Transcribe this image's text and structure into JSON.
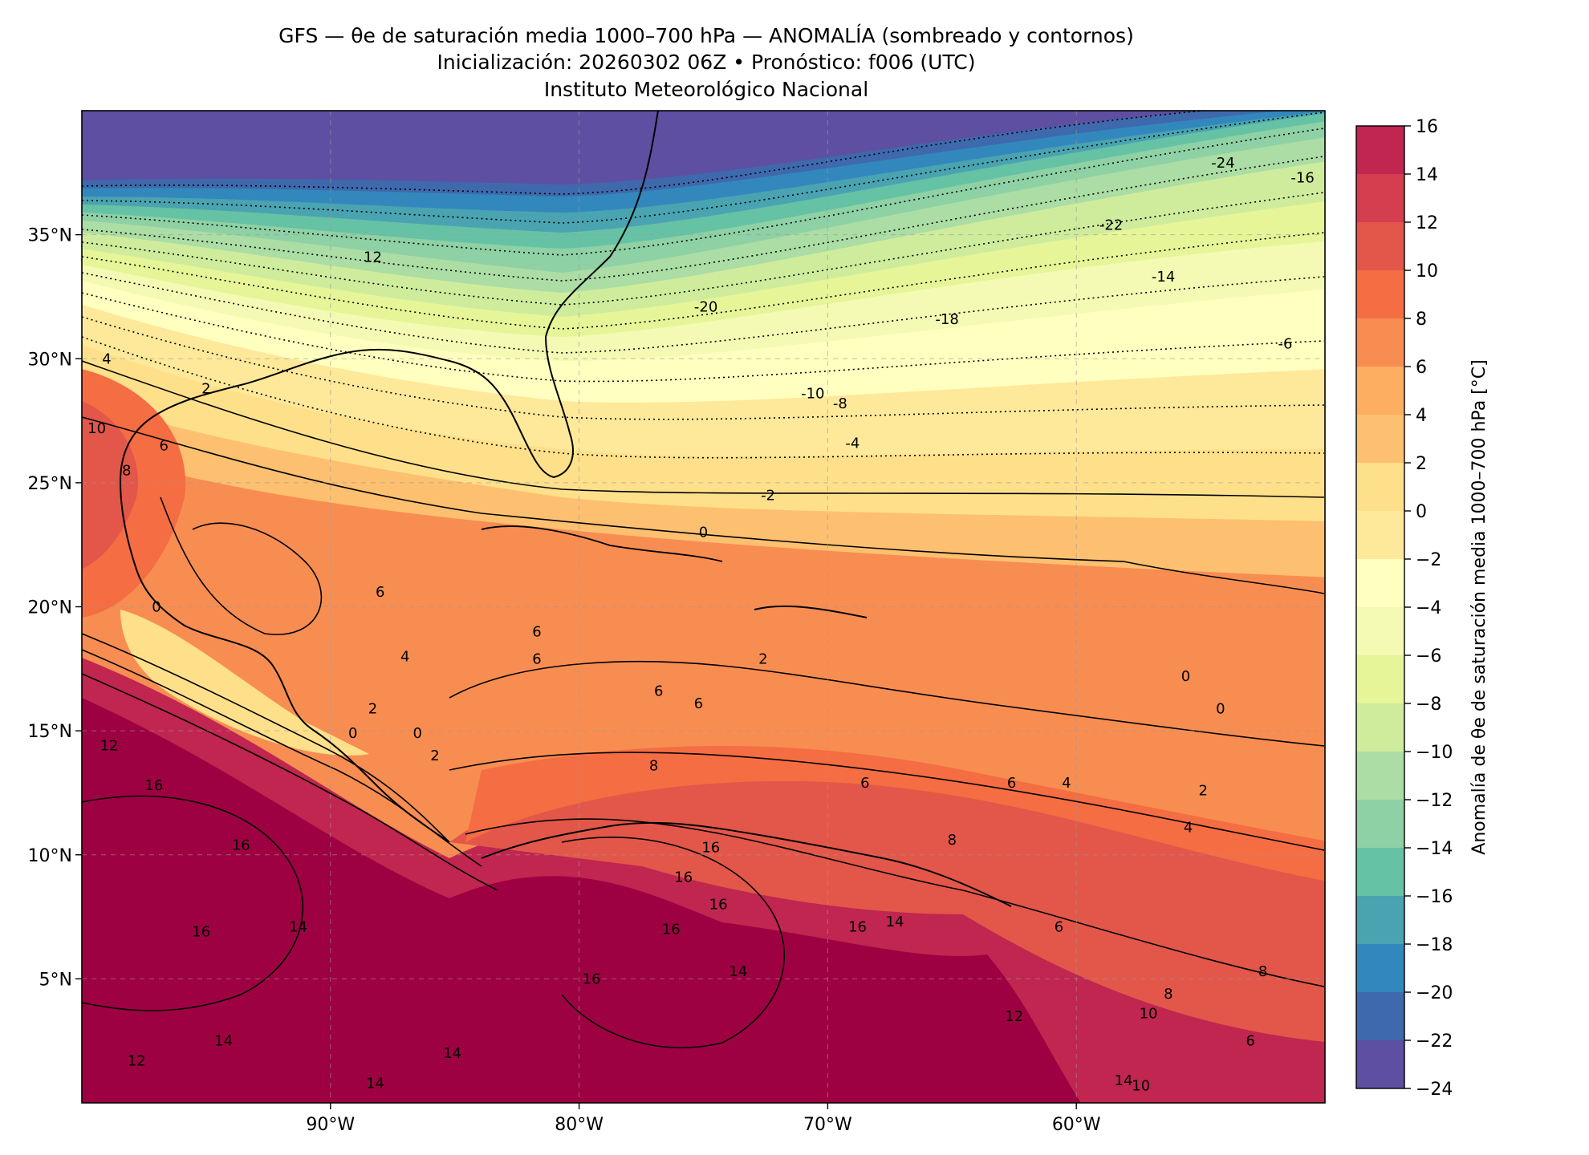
{
  "title": {
    "line1": "GFS — θe de saturación media 1000–700 hPa — ANOMALÍA (sombreado y contornos)",
    "line2": "Inicialización: 20260302 06Z   •   Pronóstico: f006 (UTC)",
    "line3": "Instituto Meteorológico Nacional"
  },
  "map": {
    "lon_range": [
      -100,
      -50
    ],
    "lat_range": [
      0,
      40
    ],
    "lon_ticks": [
      {
        "value": -90,
        "label": "90°W"
      },
      {
        "value": -80,
        "label": "80°W"
      },
      {
        "value": -70,
        "label": "70°W"
      },
      {
        "value": -60,
        "label": "60°W"
      }
    ],
    "lat_ticks": [
      {
        "value": 35,
        "label": "35°N"
      },
      {
        "value": 30,
        "label": "30°N"
      },
      {
        "value": 25,
        "label": "25°N"
      },
      {
        "value": 20,
        "label": "20°N"
      },
      {
        "value": 15,
        "label": "15°N"
      },
      {
        "value": 10,
        "label": "10°N"
      },
      {
        "value": 5,
        "label": "5°N"
      }
    ],
    "gridlines": true,
    "contour_labels": [
      {
        "text": "12",
        "lon": -88.3,
        "lat": 34.1
      },
      {
        "text": "-20",
        "lon": -74.9,
        "lat": 32.1
      },
      {
        "text": "-18",
        "lon": -65.2,
        "lat": 31.6
      },
      {
        "text": "-24",
        "lon": -54.1,
        "lat": 37.9
      },
      {
        "text": "-16",
        "lon": -50.9,
        "lat": 37.3
      },
      {
        "text": "-22",
        "lon": -58.6,
        "lat": 35.4
      },
      {
        "text": "-14",
        "lon": -56.5,
        "lat": 33.3
      },
      {
        "text": "-6",
        "lon": -51.6,
        "lat": 30.6
      },
      {
        "text": "-10",
        "lon": -70.6,
        "lat": 28.6
      },
      {
        "text": "-8",
        "lon": -69.5,
        "lat": 28.2
      },
      {
        "text": "-4",
        "lon": -69.0,
        "lat": 26.6
      },
      {
        "text": "-2",
        "lon": -72.4,
        "lat": 24.5
      },
      {
        "text": "0",
        "lon": -75.0,
        "lat": 23.0
      },
      {
        "text": "4",
        "lon": -99.0,
        "lat": 30.0
      },
      {
        "text": "2",
        "lon": -95.0,
        "lat": 28.8
      },
      {
        "text": "6",
        "lon": -96.7,
        "lat": 26.5
      },
      {
        "text": "10",
        "lon": -99.4,
        "lat": 27.2
      },
      {
        "text": "8",
        "lon": -98.2,
        "lat": 25.5
      },
      {
        "text": "6",
        "lon": -88.0,
        "lat": 20.6
      },
      {
        "text": "4",
        "lon": -87.0,
        "lat": 18.0
      },
      {
        "text": "0",
        "lon": -97.0,
        "lat": 20.0
      },
      {
        "text": "6",
        "lon": -81.7,
        "lat": 19.0
      },
      {
        "text": "6",
        "lon": -81.7,
        "lat": 17.9
      },
      {
        "text": "6",
        "lon": -76.8,
        "lat": 16.6
      },
      {
        "text": "6",
        "lon": -75.2,
        "lat": 16.1
      },
      {
        "text": "8",
        "lon": -77.0,
        "lat": 13.6
      },
      {
        "text": "6",
        "lon": -68.5,
        "lat": 12.9
      },
      {
        "text": "0",
        "lon": -86.5,
        "lat": 14.9
      },
      {
        "text": "0",
        "lon": -89.1,
        "lat": 14.9
      },
      {
        "text": "2",
        "lon": -88.3,
        "lat": 15.9
      },
      {
        "text": "2",
        "lon": -85.8,
        "lat": 14.0
      },
      {
        "text": "0",
        "lon": -55.6,
        "lat": 17.2
      },
      {
        "text": "0",
        "lon": -54.2,
        "lat": 15.9
      },
      {
        "text": "2",
        "lon": -72.6,
        "lat": 17.9
      },
      {
        "text": "12",
        "lon": -98.9,
        "lat": 14.4
      },
      {
        "text": "16",
        "lon": -97.1,
        "lat": 12.8
      },
      {
        "text": "16",
        "lon": -93.6,
        "lat": 10.4
      },
      {
        "text": "16",
        "lon": -95.2,
        "lat": 6.9
      },
      {
        "text": "14",
        "lon": -91.3,
        "lat": 7.1
      },
      {
        "text": "16",
        "lon": -74.7,
        "lat": 10.3
      },
      {
        "text": "16",
        "lon": -75.8,
        "lat": 9.1
      },
      {
        "text": "16",
        "lon": -74.4,
        "lat": 8.0
      },
      {
        "text": "16",
        "lon": -76.3,
        "lat": 7.0
      },
      {
        "text": "16",
        "lon": -79.5,
        "lat": 5.0
      },
      {
        "text": "14",
        "lon": -73.6,
        "lat": 5.3
      },
      {
        "text": "16",
        "lon": -68.8,
        "lat": 7.1
      },
      {
        "text": "14",
        "lon": -67.3,
        "lat": 7.3
      },
      {
        "text": "6",
        "lon": -60.7,
        "lat": 7.1
      },
      {
        "text": "6",
        "lon": -62.6,
        "lat": 12.9
      },
      {
        "text": "4",
        "lon": -60.4,
        "lat": 12.9
      },
      {
        "text": "2",
        "lon": -54.9,
        "lat": 12.6
      },
      {
        "text": "4",
        "lon": -55.5,
        "lat": 11.1
      },
      {
        "text": "8",
        "lon": -65.0,
        "lat": 10.6
      },
      {
        "text": "8",
        "lon": -52.5,
        "lat": 5.3
      },
      {
        "text": "8",
        "lon": -56.3,
        "lat": 4.4
      },
      {
        "text": "12",
        "lon": -62.5,
        "lat": 3.5
      },
      {
        "text": "10",
        "lon": -57.1,
        "lat": 3.6
      },
      {
        "text": "6",
        "lon": -53.0,
        "lat": 2.5
      },
      {
        "text": "12",
        "lon": -97.8,
        "lat": 1.7
      },
      {
        "text": "14",
        "lon": -94.3,
        "lat": 2.5
      },
      {
        "text": "14",
        "lon": -85.1,
        "lat": 2.0
      },
      {
        "text": "14",
        "lon": -88.2,
        "lat": 0.8
      },
      {
        "text": "14",
        "lon": -58.1,
        "lat": 0.9
      },
      {
        "text": "10",
        "lon": -57.4,
        "lat": 0.7
      }
    ]
  },
  "colorbar": {
    "label": "Anomalía de θe de saturación media 1000–700 hPa [°C]",
    "levels": [
      -24,
      -22,
      -20,
      -18,
      -16,
      -14,
      -12,
      -10,
      -8,
      -6,
      -4,
      -2,
      0,
      2,
      4,
      6,
      8,
      10,
      12,
      14,
      16
    ],
    "tick_labels": [
      "−24",
      "−22",
      "−20",
      "−18",
      "−16",
      "−14",
      "−12",
      "−10",
      "−8",
      "−6",
      "−4",
      "−2",
      "0",
      "2",
      "4",
      "6",
      "8",
      "10",
      "12",
      "14",
      "16"
    ],
    "colors": [
      "#5e4fa2",
      "#3f69ad",
      "#3288bd",
      "#4aa3b1",
      "#66c2a5",
      "#8ed1a4",
      "#abdda4",
      "#cfec9d",
      "#e6f598",
      "#f4fab3",
      "#ffffbf",
      "#fee89a",
      "#fee08b",
      "#fdc070",
      "#fdae61",
      "#f88d52",
      "#f46d43",
      "#e25749",
      "#d53e4f",
      "#c0264f",
      "#9e0142"
    ]
  }
}
